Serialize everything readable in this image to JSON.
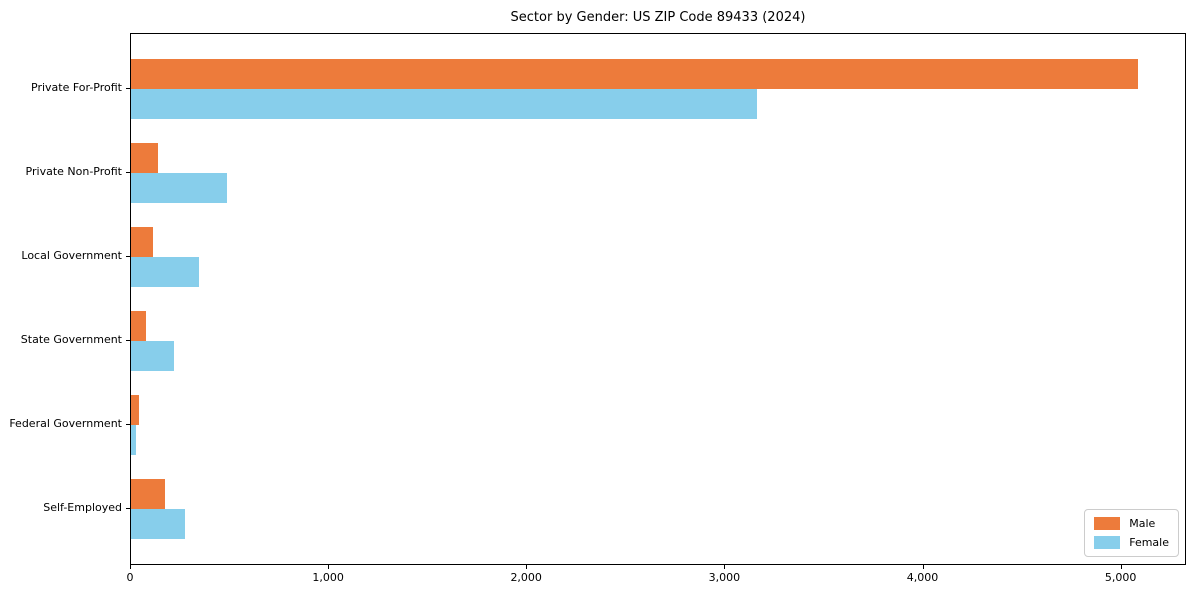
{
  "title": "Sector by Gender: US ZIP Code 89433 (2024)",
  "chart_data": {
    "type": "bar",
    "orientation": "horizontal",
    "title": "Sector by Gender: US ZIP Code 89433 (2024)",
    "categories": [
      "Private For-Profit",
      "Private Non-Profit",
      "Local Government",
      "State Government",
      "Federal Government",
      "Self-Employed"
    ],
    "series": [
      {
        "name": "Male",
        "color": "#ED7B3B",
        "values": [
          5080,
          135,
          110,
          75,
          40,
          170
        ]
      },
      {
        "name": "Female",
        "color": "#87CEEB",
        "values": [
          3160,
          485,
          345,
          215,
          25,
          270
        ]
      }
    ],
    "xlabel": "",
    "ylabel": "",
    "xlim": [
      0,
      5330
    ],
    "xticks": [
      0,
      1000,
      2000,
      3000,
      4000,
      5000
    ],
    "xtick_labels": [
      "0",
      "1,000",
      "2,000",
      "3,000",
      "4,000",
      "5,000"
    ],
    "grid": false,
    "legend_position": "lower right",
    "legend_labels": [
      "Male",
      "Female"
    ]
  }
}
